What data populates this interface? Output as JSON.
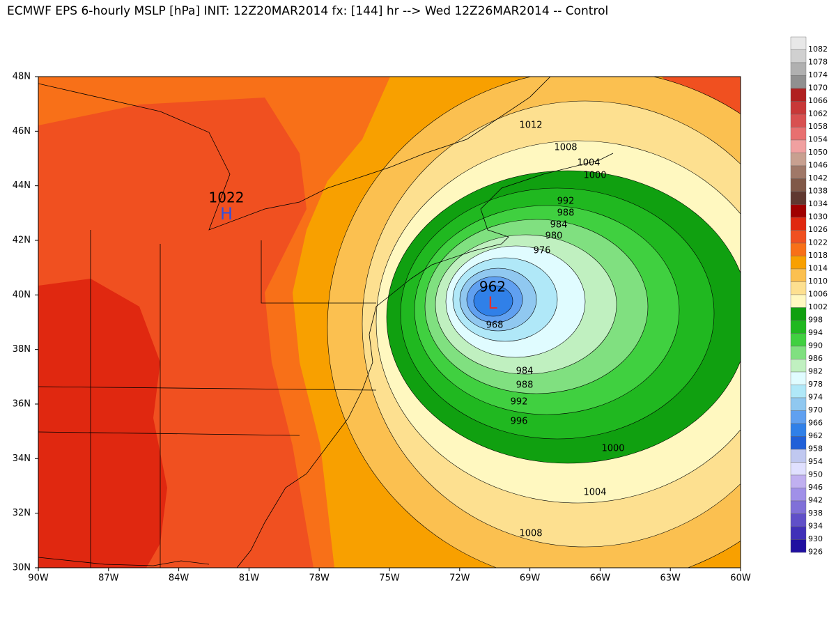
{
  "title": "ECMWF EPS 6-hourly MSLP [hPa] INIT: 12Z20MAR2014 fx: [144] hr --> Wed 12Z26MAR2014 -- Control",
  "map": {
    "lat_labels": [
      "48N",
      "46N",
      "44N",
      "42N",
      "40N",
      "38N",
      "36N",
      "34N",
      "32N",
      "30N"
    ],
    "lon_labels": [
      "90W",
      "87W",
      "84W",
      "81W",
      "78W",
      "75W",
      "72W",
      "69W",
      "66W",
      "63W",
      "60W"
    ],
    "high": {
      "letter": "H",
      "value": "1022"
    },
    "low": {
      "letter": "L",
      "value": "962"
    },
    "contour_labels": [
      "1012",
      "1008",
      "1004",
      "1000",
      "992",
      "988",
      "984",
      "980",
      "976",
      "968",
      "984",
      "988",
      "992",
      "996",
      "1000",
      "1004",
      "1008"
    ]
  },
  "colorbar": {
    "levels": [
      1082,
      1078,
      1074,
      1070,
      1066,
      1062,
      1058,
      1054,
      1050,
      1046,
      1042,
      1038,
      1034,
      1030,
      1026,
      1022,
      1018,
      1014,
      1010,
      1006,
      1002,
      998,
      994,
      990,
      986,
      982,
      978,
      974,
      970,
      966,
      962,
      958,
      954,
      950,
      946,
      942,
      938,
      934,
      930,
      926
    ],
    "colors": [
      "#e8e8e8",
      "#d0d0d0",
      "#b0b0b0",
      "#909090",
      "#b02020",
      "#c83838",
      "#d85050",
      "#e87070",
      "#f0a0a0",
      "#c8a090",
      "#a07868",
      "#805848",
      "#603830",
      "#a00000",
      "#e02810",
      "#f05020",
      "#f87018",
      "#f8a000",
      "#fbc050",
      "#fde090",
      "#fff8c0",
      "#10a010",
      "#20b820",
      "#40d040",
      "#80e080",
      "#c0f0c0",
      "#e0fcff",
      "#b0e8f8",
      "#90c8f0",
      "#60a0f0",
      "#3080e8",
      "#2060d8",
      "#c0c8f0",
      "#e0e0ff",
      "#c0b0f0",
      "#a090e8",
      "#8070d8",
      "#6050c8",
      "#4030b8",
      "#2010a0"
    ]
  }
}
